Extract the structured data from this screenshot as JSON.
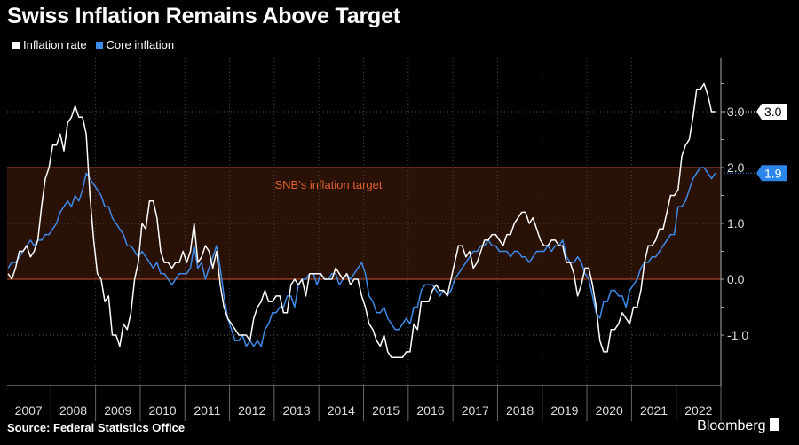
{
  "title": "Swiss Inflation Remains Above Target",
  "source": "Source: Federal Statistics Office",
  "brand": "Bloomberg",
  "colors": {
    "inflation": "#ffffff",
    "core": "#3d8be8",
    "band_fill": "#2a1106",
    "band_edge": "#c8552e",
    "band_label": "#e0602f"
  },
  "chart_data": {
    "type": "line",
    "title": "Swiss Inflation Remains Above Target",
    "x_start": "2007-01",
    "frequency": "monthly",
    "x_ticks": [
      "2007",
      "2008",
      "2009",
      "2010",
      "2011",
      "2012",
      "2013",
      "2014",
      "2015",
      "2016",
      "2017",
      "2018",
      "2019",
      "2020",
      "2021",
      "2022"
    ],
    "y_ticks": [
      "-1.0",
      "0.0",
      "1.0",
      "2.0",
      "3.0"
    ],
    "ylim": [
      -1.9,
      4.0
    ],
    "grid": true,
    "legend": "top-left",
    "band": {
      "from": 0,
      "to": 2,
      "label": "SNB's inflation target"
    },
    "series": [
      {
        "name": "Inflation rate",
        "last_label": "3.0",
        "values": [
          0.1,
          0.0,
          0.2,
          0.5,
          0.5,
          0.6,
          0.4,
          0.5,
          0.7,
          1.3,
          1.8,
          2.0,
          2.4,
          2.4,
          2.6,
          2.3,
          2.8,
          2.9,
          3.1,
          2.9,
          2.9,
          2.6,
          1.5,
          0.7,
          0.1,
          0.0,
          -0.4,
          -0.3,
          -1.0,
          -1.0,
          -1.2,
          -0.8,
          -0.9,
          -0.6,
          0.0,
          0.3,
          1.0,
          0.9,
          1.4,
          1.4,
          1.1,
          0.5,
          0.3,
          0.3,
          0.2,
          0.3,
          0.3,
          0.5,
          0.3,
          0.5,
          1.0,
          0.3,
          0.4,
          0.6,
          0.5,
          0.2,
          0.5,
          -0.1,
          -0.5,
          -0.7,
          -0.8,
          -0.9,
          -1.0,
          -1.0,
          -1.0,
          -1.1,
          -0.7,
          -0.5,
          -0.4,
          -0.2,
          -0.4,
          -0.4,
          -0.3,
          -0.3,
          -0.6,
          -0.6,
          -0.1,
          0.0,
          -0.1,
          0.0,
          -0.3,
          0.1,
          0.1,
          0.1,
          0.1,
          0.0,
          0.0,
          0.0,
          0.2,
          0.1,
          0.0,
          0.1,
          -0.1,
          0.0,
          0.0,
          -0.3,
          -0.5,
          -0.8,
          -0.9,
          -1.1,
          -1.2,
          -1.0,
          -1.3,
          -1.4,
          -1.4,
          -1.4,
          -1.4,
          -1.3,
          -1.3,
          -0.8,
          -0.9,
          -0.4,
          -0.4,
          -0.4,
          -0.2,
          -0.1,
          -0.2,
          -0.2,
          -0.3,
          0.0,
          0.3,
          0.6,
          0.6,
          0.4,
          0.5,
          0.2,
          0.3,
          0.5,
          0.7,
          0.7,
          0.8,
          0.8,
          0.7,
          0.6,
          0.8,
          0.8,
          1.0,
          1.1,
          1.2,
          1.2,
          1.0,
          1.1,
          0.9,
          0.7,
          0.6,
          0.6,
          0.7,
          0.7,
          0.6,
          0.6,
          0.3,
          0.3,
          0.1,
          -0.3,
          -0.1,
          0.2,
          0.2,
          -0.1,
          -0.5,
          -1.1,
          -1.3,
          -1.3,
          -0.9,
          -0.9,
          -0.8,
          -0.6,
          -0.7,
          -0.8,
          -0.5,
          -0.5,
          -0.2,
          0.3,
          0.6,
          0.6,
          0.7,
          0.9,
          0.9,
          1.2,
          1.5,
          1.5,
          1.6,
          2.2,
          2.4,
          2.5,
          2.9,
          3.4,
          3.4,
          3.5,
          3.3,
          3.0,
          3.0
        ]
      },
      {
        "name": "Core inflation",
        "last_label": "1.9",
        "values": [
          0.2,
          0.3,
          0.3,
          0.4,
          0.5,
          0.6,
          0.7,
          0.6,
          0.7,
          0.7,
          0.8,
          0.8,
          0.9,
          1.0,
          1.2,
          1.3,
          1.4,
          1.3,
          1.5,
          1.4,
          1.6,
          1.9,
          1.8,
          1.7,
          1.6,
          1.5,
          1.3,
          1.3,
          1.1,
          1.0,
          0.9,
          0.8,
          0.6,
          0.6,
          0.5,
          0.4,
          0.5,
          0.4,
          0.3,
          0.2,
          0.3,
          0.1,
          0.1,
          0.0,
          -0.1,
          0.0,
          0.1,
          0.1,
          0.1,
          0.2,
          0.6,
          0.2,
          0.3,
          0.0,
          0.2,
          0.4,
          0.6,
          0.2,
          -0.3,
          -0.7,
          -0.9,
          -1.1,
          -1.1,
          -1.0,
          -1.2,
          -1.1,
          -1.2,
          -1.1,
          -1.2,
          -0.9,
          -0.8,
          -0.6,
          -0.6,
          -0.5,
          -0.5,
          -0.3,
          -0.3,
          -0.5,
          -0.1,
          0.0,
          0.0,
          0.1,
          0.1,
          -0.1,
          0.1,
          0.0,
          0.0,
          0.1,
          0.1,
          -0.1,
          0.0,
          0.1,
          0.0,
          0.1,
          0.2,
          0.3,
          0.1,
          -0.3,
          -0.4,
          -0.6,
          -0.6,
          -0.5,
          -0.7,
          -0.8,
          -0.9,
          -0.9,
          -0.8,
          -0.7,
          -0.8,
          -0.5,
          -0.5,
          -0.2,
          -0.1,
          -0.1,
          -0.1,
          -0.2,
          -0.3,
          -0.2,
          -0.3,
          -0.2,
          0.0,
          0.1,
          0.2,
          0.3,
          0.4,
          0.5,
          0.5,
          0.6,
          0.6,
          0.7,
          0.6,
          0.6,
          0.5,
          0.5,
          0.5,
          0.4,
          0.5,
          0.5,
          0.4,
          0.4,
          0.3,
          0.4,
          0.5,
          0.5,
          0.5,
          0.6,
          0.5,
          0.6,
          0.6,
          0.7,
          0.4,
          0.3,
          0.3,
          0.4,
          0.3,
          0.1,
          0.0,
          -0.3,
          -0.6,
          -0.7,
          -0.4,
          -0.4,
          -0.2,
          -0.2,
          -0.3,
          -0.3,
          -0.5,
          -0.2,
          -0.1,
          0.0,
          0.2,
          0.3,
          0.3,
          0.4,
          0.4,
          0.5,
          0.6,
          0.7,
          0.8,
          0.8,
          1.3,
          1.3,
          1.4,
          1.6,
          1.8,
          1.9,
          2.0,
          2.0,
          1.9,
          1.8,
          1.9
        ]
      }
    ]
  }
}
